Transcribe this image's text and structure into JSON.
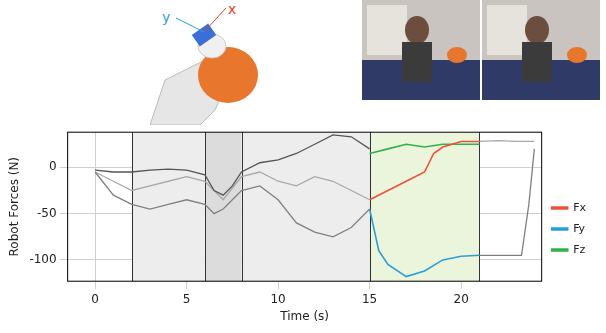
{
  "chart_data": {
    "type": "line",
    "x_label": "Time (s)",
    "y_label": "Robot Forces (N)",
    "xlim": [
      -1.5,
      24.4
    ],
    "xticks": [
      0,
      5,
      10,
      15,
      20
    ],
    "ylim": [
      -123,
      38
    ],
    "yticks": [
      -100,
      -50,
      0
    ],
    "grid": true,
    "legend": "right",
    "annotations": [
      {
        "text": "y",
        "color": "#2a9fd6"
      },
      {
        "text": "x",
        "color": "#e8412c"
      }
    ],
    "regions": [
      {
        "start": 2,
        "end": 6,
        "color": "#ededed"
      },
      {
        "start": 6,
        "end": 8,
        "color": "#dcdcdc"
      },
      {
        "start": 8,
        "end": 15,
        "color": "#ededed"
      },
      {
        "start": 15,
        "end": 21,
        "color": "#eaf5dc"
      }
    ],
    "series": [
      {
        "color": "#555555",
        "x": [
          0,
          1,
          2,
          3,
          4,
          5,
          6,
          6.5,
          7,
          7.5,
          8,
          9,
          10,
          11,
          12,
          13,
          14,
          15
        ],
        "values": [
          -3,
          -5,
          -5,
          -3,
          -2,
          -3,
          -8,
          -25,
          -30,
          -20,
          -5,
          5,
          8,
          15,
          25,
          35,
          33,
          20
        ]
      },
      {
        "color": "#808080",
        "x": [
          0,
          1,
          2,
          3,
          4,
          5,
          6,
          6.5,
          7,
          8,
          9,
          10,
          11,
          12,
          13,
          14,
          15
        ],
        "values": [
          -5,
          -30,
          -40,
          -45,
          -40,
          -35,
          -40,
          -50,
          -45,
          -25,
          -20,
          -35,
          -60,
          -70,
          -75,
          -65,
          -45
        ]
      },
      {
        "color": "#a8a8a8",
        "x": [
          0,
          1,
          2,
          3,
          4,
          5,
          6,
          7,
          8,
          9,
          10,
          11,
          12,
          13,
          14,
          15
        ],
        "values": [
          -5,
          -15,
          -25,
          -20,
          -15,
          -10,
          -15,
          -35,
          -10,
          -5,
          -15,
          -20,
          -10,
          -15,
          -25,
          -35
        ]
      },
      {
        "color": "#808080",
        "x": [
          21,
          23.3,
          23.7,
          24
        ],
        "values": [
          -95,
          -95,
          -40,
          20
        ]
      },
      {
        "color": "#a8a8a8",
        "x": [
          21,
          22,
          23,
          24
        ],
        "values": [
          28,
          29,
          28,
          28
        ]
      },
      {
        "name": "Fx",
        "color": "#f0503a",
        "x": [
          15,
          16,
          17,
          18,
          18.5,
          19,
          20,
          21
        ],
        "values": [
          -35,
          -25,
          -15,
          -5,
          15,
          22,
          28,
          28
        ]
      },
      {
        "name": "Fy",
        "color": "#2a9fd6",
        "x": [
          15,
          15.5,
          16,
          17,
          18,
          19,
          20,
          21
        ],
        "values": [
          -45,
          -90,
          -105,
          -118,
          -112,
          -100,
          -96,
          -95
        ]
      },
      {
        "name": "Fz",
        "color": "#2fb34a",
        "x": [
          15,
          16,
          17,
          18,
          19,
          20,
          21
        ],
        "values": [
          15,
          20,
          25,
          22,
          25,
          25,
          25
        ]
      }
    ]
  }
}
